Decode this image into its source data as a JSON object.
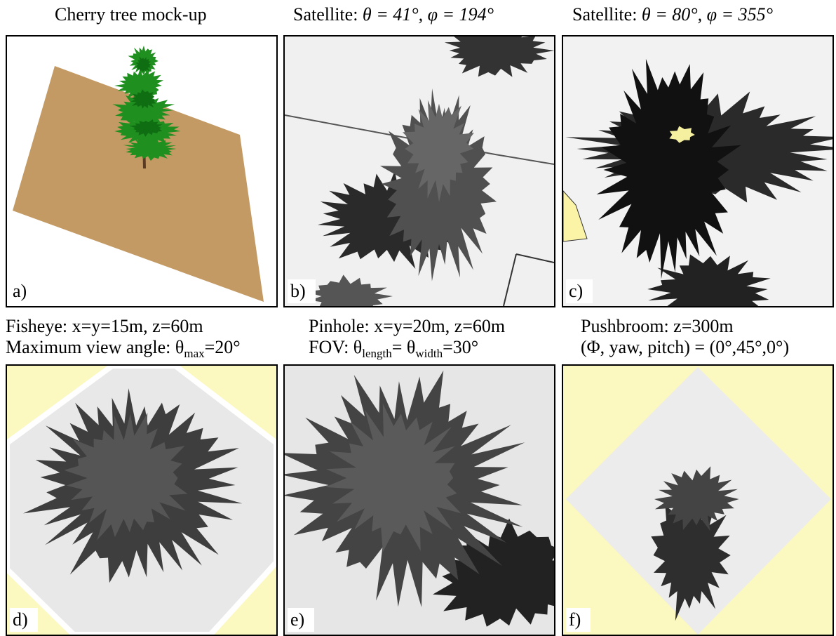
{
  "panels": [
    {
      "title_lines": [
        [
          "Cherry tree mock-up"
        ]
      ],
      "label": "a)"
    },
    {
      "title_lines": [
        [
          "Satellite: ",
          "θ = 41°, φ = 194°"
        ]
      ],
      "label": "b)"
    },
    {
      "title_lines": [
        [
          "Satellite: ",
          "θ = 80°, φ = 355°"
        ]
      ],
      "label": "c)"
    },
    {
      "title_lines": [
        [
          "Fisheye: x=y=15m, z=60m"
        ],
        [
          "Maximum view angle: θ",
          "max",
          "=20°"
        ]
      ],
      "label": "d)"
    },
    {
      "title_lines": [
        [
          "Pinhole: x=y=20m, z=60m"
        ],
        [
          "FOV: θ",
          "length",
          "= θ",
          "width",
          "=30°"
        ]
      ],
      "label": "e)"
    },
    {
      "title_lines": [
        [
          "Pushbroom: z=300m"
        ],
        [
          "(Φ, yaw, pitch) = (0°,45°,0°)"
        ]
      ],
      "label": "f)"
    }
  ]
}
